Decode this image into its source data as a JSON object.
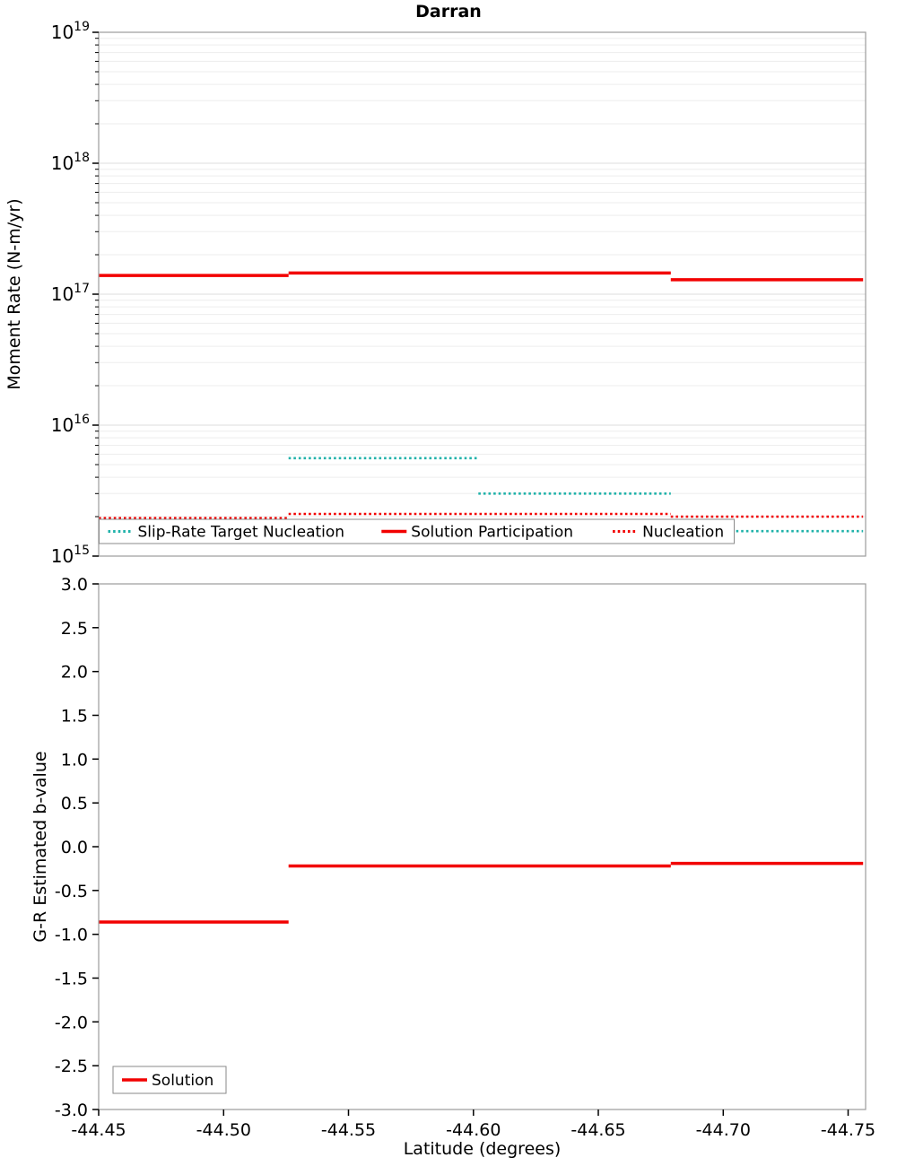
{
  "title": "Darran",
  "xlabel": "Latitude (degrees)",
  "x_ticks": [
    -44.45,
    -44.5,
    -44.55,
    -44.6,
    -44.65,
    -44.7,
    -44.75
  ],
  "chart_data": [
    {
      "type": "line",
      "title": "Darran",
      "ylabel": "Moment Rate (N-m/yr)",
      "yscale": "log",
      "ylim": [
        1000000000000000.0,
        1e+19
      ],
      "xlim": [
        -44.45,
        -44.757
      ],
      "x_axis": "Latitude (degrees), shared with lower panel, decreasing to the right",
      "y_ticks_exp": [
        19,
        18,
        17,
        16,
        15
      ],
      "grid": "light horizontal log minor gridlines",
      "legend_position": "bottom-left-horizontal-boxed",
      "series": [
        {
          "name": "Slip-Rate Target Nucleation",
          "color": "#20b2aa",
          "style": "dotted",
          "width": 2.6,
          "segments": [
            {
              "x": [
                -44.45,
                -44.526
              ],
              "y": 1580000000000000.0
            },
            {
              "x": [
                -44.526,
                -44.602
              ],
              "y": 5600000000000000.0
            },
            {
              "x": [
                -44.602,
                -44.679
              ],
              "y": 3000000000000000.0
            },
            {
              "x": [
                -44.679,
                -44.756
              ],
              "y": 1550000000000000.0
            }
          ]
        },
        {
          "name": "Solution Participation",
          "color": "#f20000",
          "style": "solid",
          "width": 3.5,
          "segments": [
            {
              "x": [
                -44.45,
                -44.526
              ],
              "y": 1.39e+17
            },
            {
              "x": [
                -44.526,
                -44.679
              ],
              "y": 1.45e+17
            },
            {
              "x": [
                -44.679,
                -44.756
              ],
              "y": 1.29e+17
            }
          ]
        },
        {
          "name": "Nucleation",
          "color": "#f20000",
          "style": "dotted",
          "width": 2.6,
          "segments": [
            {
              "x": [
                -44.45,
                -44.526
              ],
              "y": 1950000000000000.0
            },
            {
              "x": [
                -44.526,
                -44.679
              ],
              "y": 2100000000000000.0
            },
            {
              "x": [
                -44.679,
                -44.756
              ],
              "y": 2000000000000000.0
            }
          ]
        }
      ]
    },
    {
      "type": "line",
      "ylabel": "G-R Estimated b-value",
      "yscale": "linear",
      "ylim": [
        -3.0,
        3.0
      ],
      "xlim": [
        -44.45,
        -44.757
      ],
      "y_ticks": [
        3.0,
        2.5,
        2.0,
        1.5,
        1.0,
        0.5,
        0.0,
        -0.5,
        -1.0,
        -1.5,
        -2.0,
        -2.5,
        -3.0
      ],
      "grid": "none",
      "legend_position": "bottom-left-boxed",
      "series": [
        {
          "name": "Solution",
          "color": "#f20000",
          "style": "solid",
          "width": 3.5,
          "segments": [
            {
              "x": [
                -44.45,
                -44.526
              ],
              "y": -0.86
            },
            {
              "x": [
                -44.526,
                -44.679
              ],
              "y": -0.22
            },
            {
              "x": [
                -44.679,
                -44.756
              ],
              "y": -0.19
            }
          ]
        }
      ]
    }
  ]
}
